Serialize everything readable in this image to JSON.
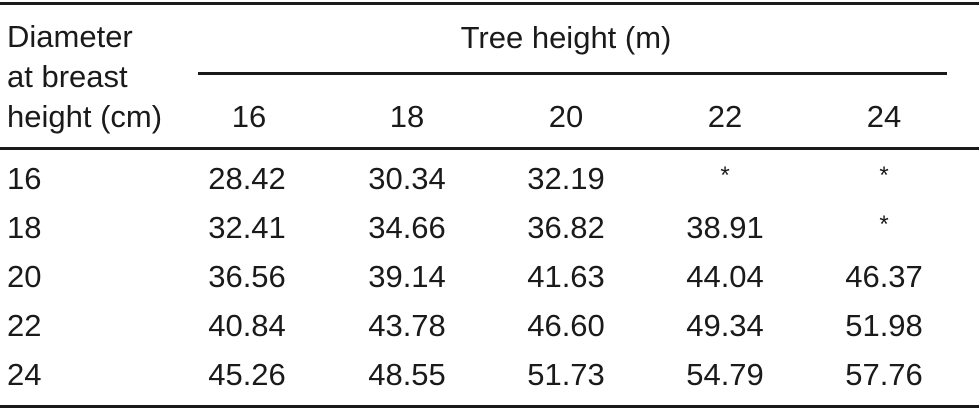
{
  "table": {
    "stub_header_lines": [
      "Diameter",
      "at breast",
      "height (cm)"
    ],
    "spanner": "Tree height (m)",
    "columns": [
      "16",
      "18",
      "20",
      "22",
      "24"
    ],
    "rows": [
      {
        "label": "16",
        "values": [
          "28.42",
          "30.34",
          "32.19",
          "*",
          "*"
        ]
      },
      {
        "label": "18",
        "values": [
          "32.41",
          "34.66",
          "36.82",
          "38.91",
          "*"
        ]
      },
      {
        "label": "20",
        "values": [
          "36.56",
          "39.14",
          "41.63",
          "44.04",
          "46.37"
        ]
      },
      {
        "label": "22",
        "values": [
          "40.84",
          "43.78",
          "46.60",
          "49.34",
          "51.98"
        ]
      },
      {
        "label": "24",
        "values": [
          "45.26",
          "48.55",
          "51.73",
          "54.79",
          "57.76"
        ]
      }
    ]
  }
}
